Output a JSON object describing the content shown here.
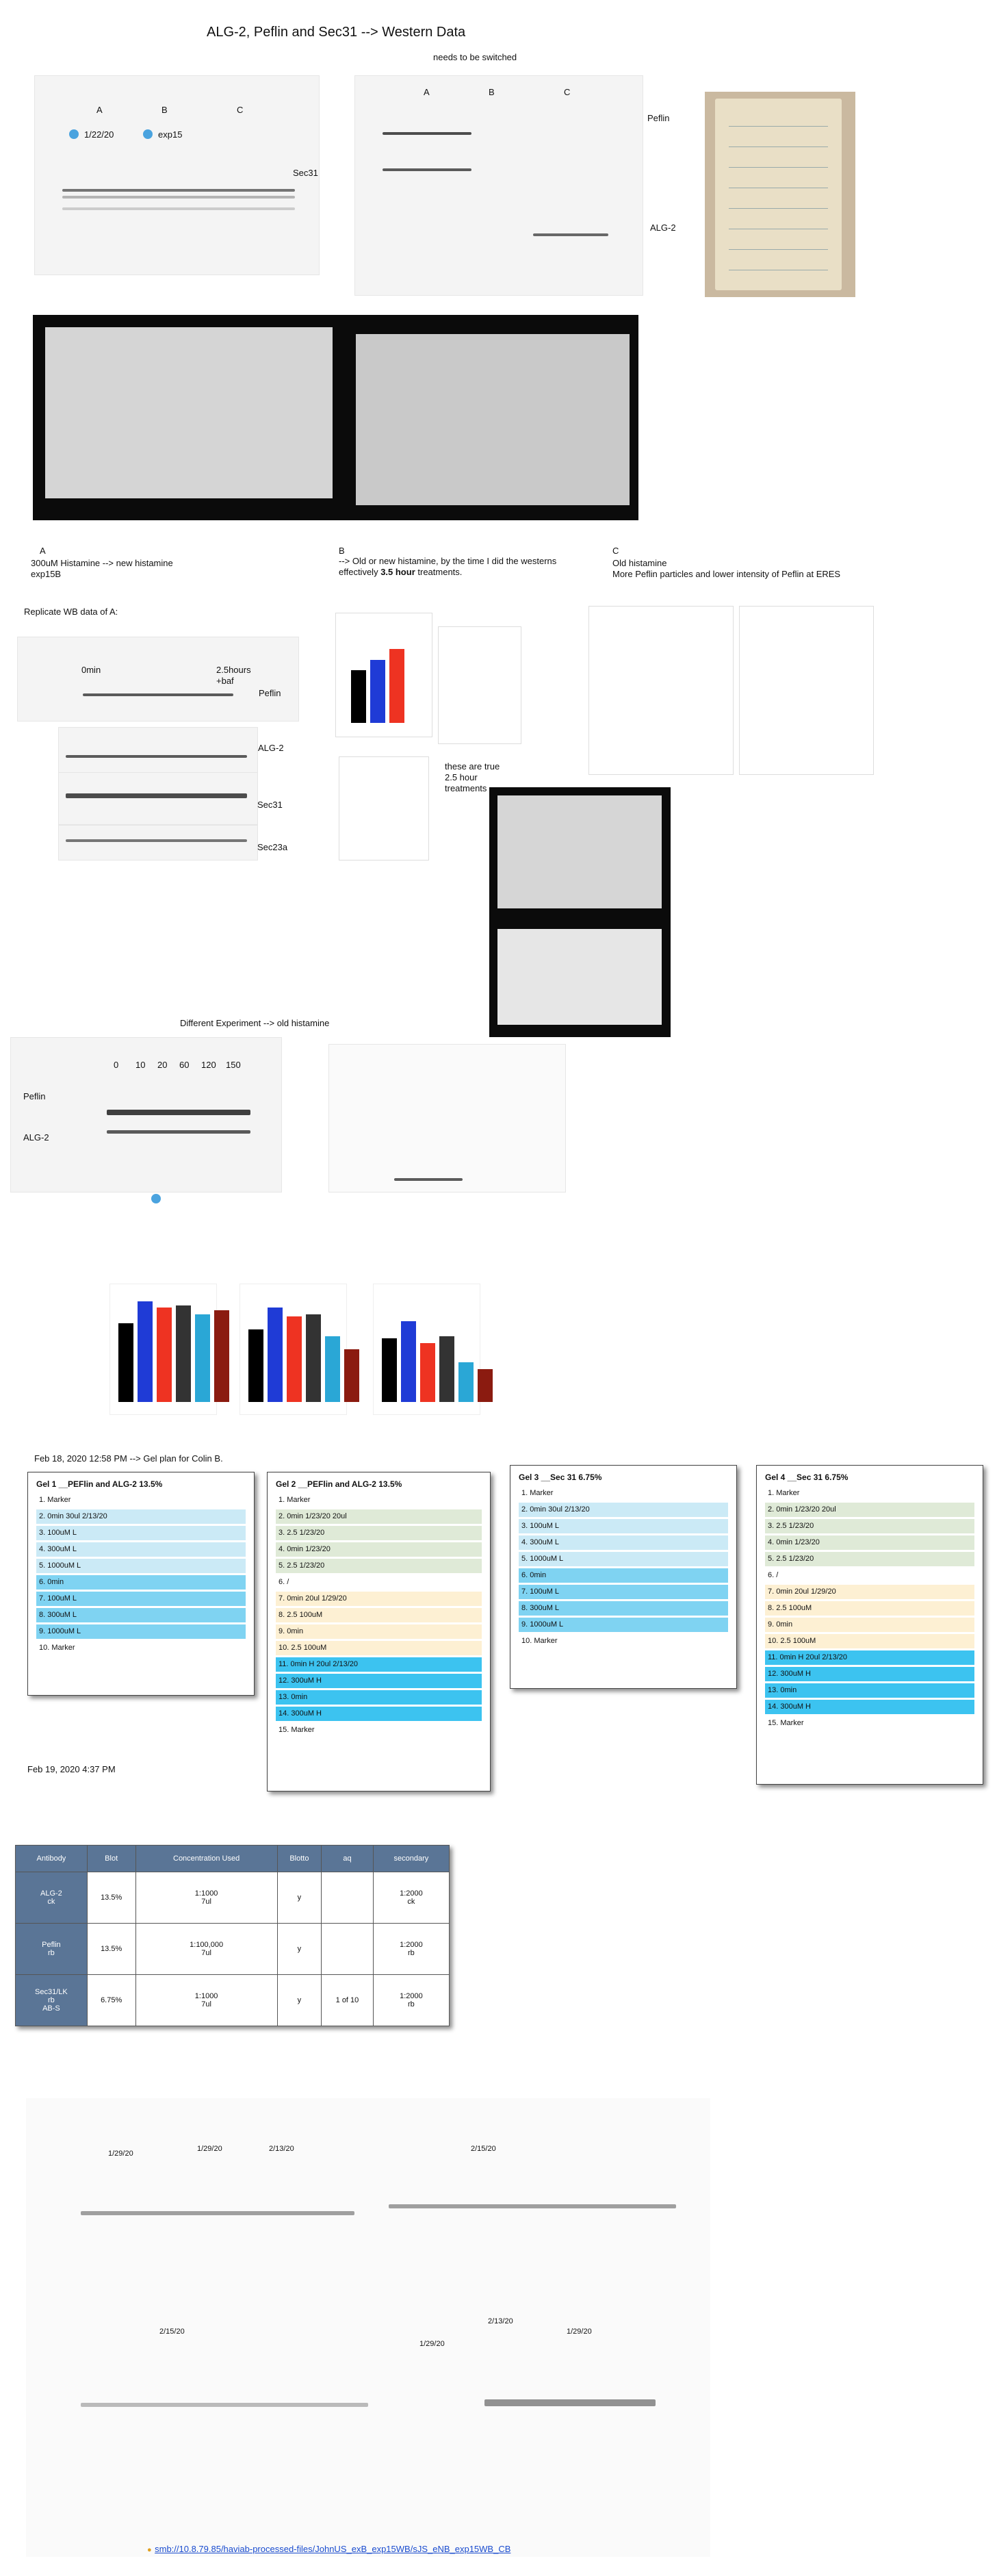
{
  "page": {
    "title": "ALG-2, Peflin and Sec31 --> Western Data",
    "note_switch": "needs to be switched"
  },
  "blot_top_left": {
    "groups": [
      "A",
      "B",
      "C"
    ],
    "tag1": "1/22/20",
    "tag2": "exp15",
    "label": "Sec31"
  },
  "blot_top_right": {
    "groups": [
      "A",
      "B",
      "C"
    ],
    "label_top": "Peflin",
    "label_bottom": "ALG-2"
  },
  "section_a": {
    "letter": "A",
    "line1": "300uM Histamine --> new histamine",
    "line2": "exp15B",
    "replicate": "Replicate WB data of A:",
    "lane_left": "0min",
    "lane_right": "2.5hours",
    "lane_right2": "+baf",
    "labels": [
      "Peflin",
      "ALG-2",
      "Sec31",
      "Sec23a"
    ]
  },
  "section_b": {
    "letter": "B",
    "line1": "--> Old or new histamine, by the time I did the westerns",
    "line2_pre": "effectively ",
    "line2_bold": "3.5 hour",
    "line2_post": " treatments.",
    "note": "these are true 2.5 hour treatments"
  },
  "section_c": {
    "letter": "C",
    "line1": "Old histamine",
    "line2": "More Peflin particles and lower intensity of Peflin at ERES"
  },
  "different_experiment": {
    "title": "Different Experiment --> old histamine",
    "times": [
      "0",
      "10",
      "20",
      "60",
      "120",
      "150"
    ],
    "label_peflin": "Peflin",
    "label_alg2": "ALG-2"
  },
  "bar_charts": {
    "charts": [
      {
        "values": [
          0.72,
          0.92,
          0.86,
          0.88,
          0.8,
          0.84
        ],
        "colors": [
          "#000000",
          "#1f3bd6",
          "#ee3322",
          "#333333",
          "#2aa7d6",
          "#8b1b10"
        ]
      },
      {
        "values": [
          0.66,
          0.86,
          0.78,
          0.8,
          0.6,
          0.48
        ],
        "colors": [
          "#000000",
          "#1f3bd6",
          "#ee3322",
          "#333333",
          "#2aa7d6",
          "#8b1b10"
        ]
      },
      {
        "values": [
          0.58,
          0.74,
          0.54,
          0.6,
          0.36,
          0.3
        ],
        "colors": [
          "#000000",
          "#1f3bd6",
          "#ee3322",
          "#333333",
          "#2aa7d6",
          "#8b1b10"
        ]
      }
    ],
    "b_chart": {
      "values": [
        0.55,
        0.66,
        0.77
      ],
      "colors": [
        "#000000",
        "#1f3bd6",
        "#ee3322"
      ]
    }
  },
  "gel_plan": {
    "header": "Feb 18, 2020 12:58 PM --> Gel plan for Colin B.",
    "gels": [
      {
        "title": "Gel 1 __PEFlin and ALG-2 13.5%",
        "rows": [
          {
            "n": "1.",
            "text": "Marker",
            "c": ""
          },
          {
            "n": "2.",
            "text": "0min   30ul  2/13/20",
            "c": "c-lb"
          },
          {
            "n": "3.",
            "text": "100uM L",
            "c": "c-lb"
          },
          {
            "n": "4.",
            "text": "300uM L",
            "c": "c-lb"
          },
          {
            "n": "5.",
            "text": "1000uM L",
            "c": "c-lb"
          },
          {
            "n": "6.",
            "text": "0min",
            "c": "c-b"
          },
          {
            "n": "7.",
            "text": "100uM L",
            "c": "c-b"
          },
          {
            "n": "8.",
            "text": "300uM L",
            "c": "c-b"
          },
          {
            "n": "9.",
            "text": "1000uM L",
            "c": "c-b"
          },
          {
            "n": "10.",
            "text": "Marker",
            "c": ""
          }
        ]
      },
      {
        "title": "Gel 2 __PEFlin and ALG-2 13.5%",
        "rows": [
          {
            "n": "1.",
            "text": "Marker",
            "c": ""
          },
          {
            "n": "2.",
            "text": "0min 1/23/20  20ul",
            "c": "c-g"
          },
          {
            "n": "3.",
            "text": "2.5 1/23/20",
            "c": "c-g"
          },
          {
            "n": "4.",
            "text": "0min 1/23/20",
            "c": "c-g"
          },
          {
            "n": "5.",
            "text": "2.5 1/23/20",
            "c": "c-g"
          },
          {
            "n": "6.",
            "text": "/",
            "c": ""
          },
          {
            "n": "7.",
            "text": "0min   20ul   1/29/20",
            "c": "c-y"
          },
          {
            "n": "8.",
            "text": "2.5 100uM",
            "c": "c-y"
          },
          {
            "n": "9.",
            "text": "0min",
            "c": "c-y"
          },
          {
            "n": "10.",
            "text": "2.5 100uM",
            "c": "c-y"
          },
          {
            "n": "11.",
            "text": "0min H    20ul 2/13/20",
            "c": "c-bb"
          },
          {
            "n": "12.",
            "text": "300uM H",
            "c": "c-bb"
          },
          {
            "n": "13.",
            "text": "0min",
            "c": "c-bb"
          },
          {
            "n": "14.",
            "text": "300uM H",
            "c": "c-bb"
          },
          {
            "n": "15.",
            "text": "Marker",
            "c": ""
          }
        ]
      },
      {
        "title": "Gel 3 __Sec 31 6.75%",
        "rows": [
          {
            "n": "1.",
            "text": "Marker",
            "c": ""
          },
          {
            "n": "2.",
            "text": "0min   30ul  2/13/20",
            "c": "c-lb"
          },
          {
            "n": "3.",
            "text": "100uM L",
            "c": "c-lb"
          },
          {
            "n": "4.",
            "text": "300uM L",
            "c": "c-lb"
          },
          {
            "n": "5.",
            "text": "1000uM L",
            "c": "c-lb"
          },
          {
            "n": "6.",
            "text": "0min",
            "c": "c-b"
          },
          {
            "n": "7.",
            "text": "100uM L",
            "c": "c-b"
          },
          {
            "n": "8.",
            "text": "300uM L",
            "c": "c-b"
          },
          {
            "n": "9.",
            "text": "1000uM L",
            "c": "c-b"
          },
          {
            "n": "10.",
            "text": "Marker",
            "c": ""
          }
        ]
      },
      {
        "title": "Gel 4 __Sec 31 6.75%",
        "rows": [
          {
            "n": "1.",
            "text": "Marker",
            "c": ""
          },
          {
            "n": "2.",
            "text": "0min 1/23/20  20ul",
            "c": "c-g"
          },
          {
            "n": "3.",
            "text": "2.5 1/23/20",
            "c": "c-g"
          },
          {
            "n": "4.",
            "text": "0min 1/23/20",
            "c": "c-g"
          },
          {
            "n": "5.",
            "text": "2.5 1/23/20",
            "c": "c-g"
          },
          {
            "n": "6.",
            "text": "/",
            "c": ""
          },
          {
            "n": "7.",
            "text": "0min   20ul   1/29/20",
            "c": "c-y"
          },
          {
            "n": "8.",
            "text": "2.5 100uM",
            "c": "c-y"
          },
          {
            "n": "9.",
            "text": "0min",
            "c": "c-y"
          },
          {
            "n": "10.",
            "text": "2.5 100uM",
            "c": "c-y"
          },
          {
            "n": "11.",
            "text": "0min H    20ul 2/13/20",
            "c": "c-bb"
          },
          {
            "n": "12.",
            "text": "300uM H",
            "c": "c-bb"
          },
          {
            "n": "13.",
            "text": "0min",
            "c": "c-bb"
          },
          {
            "n": "14.",
            "text": "300uM H",
            "c": "c-bb"
          },
          {
            "n": "15.",
            "text": "Marker",
            "c": ""
          }
        ]
      }
    ]
  },
  "antibody_table": {
    "date": "Feb 19, 2020 4:37 PM",
    "headers": [
      "Antibody",
      "Blot",
      "Concentration Used",
      "Blotto",
      "aq",
      "secondary"
    ],
    "rows": [
      [
        "ALG-2\nck",
        "13.5%",
        "1:1000\n7ul",
        "y",
        "",
        "1:2000\nck"
      ],
      [
        "Peflin\nrb",
        "13.5%",
        "1:100,000\n7ul",
        "y",
        "",
        "1:2000\nrb"
      ],
      [
        "Sec31/LK\nrb\nAB-S",
        "6.75%",
        "1:1000\n7ul",
        "y",
        "1 of 10",
        "1:2000\nrb"
      ]
    ]
  },
  "final_blots": {
    "dates_top_left": [
      "1/29/20",
      "1/29/20",
      "2/13/20"
    ],
    "date_top_right": "2/15/20",
    "date_bottom_left": "2/15/20",
    "dates_bottom_right": [
      "1/29/20",
      "2/13/20",
      "1/29/20"
    ]
  },
  "footer_link": "smb://10.8.79.85/haviab-processed-files/JohnUS_exB_exp15WB/sJS_eNB_exp15WB_CB"
}
